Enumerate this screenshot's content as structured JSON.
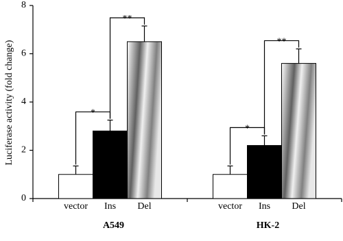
{
  "chart_data": {
    "type": "bar",
    "y_label": "Luciferase activity (fold change)",
    "categories": [
      "A549",
      "HK-2"
    ],
    "series": [
      {
        "name": "vector",
        "color": "#ffffff",
        "values": [
          1.0,
          1.0
        ],
        "errors": [
          0.35,
          0.35
        ]
      },
      {
        "name": "Ins",
        "color": "#000000",
        "values": [
          2.8,
          2.2
        ],
        "errors": [
          0.45,
          0.4
        ]
      },
      {
        "name": "Del",
        "color": "#a0a0a0",
        "fill_style": "gradient",
        "values": [
          6.5,
          5.6
        ],
        "errors": [
          0.65,
          0.6
        ]
      }
    ],
    "significance": [
      [
        "*",
        "**"
      ],
      [
        "*",
        "**"
      ]
    ],
    "ylim": [
      0,
      8
    ],
    "yticks": [
      0,
      2,
      4,
      6,
      8
    ]
  }
}
